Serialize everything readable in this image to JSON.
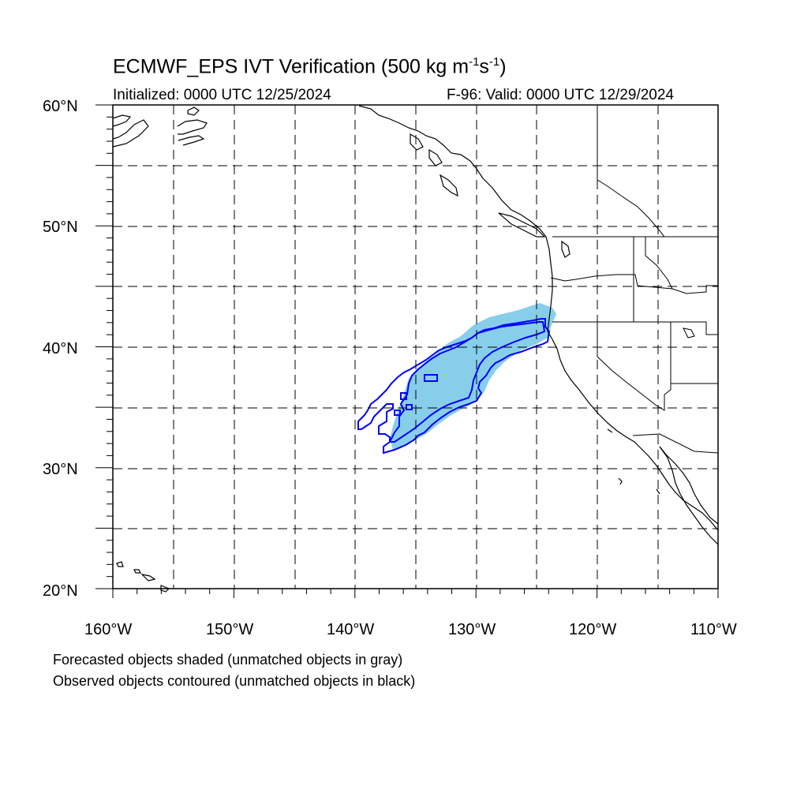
{
  "header": {
    "title_main": "ECMWF_EPS IVT Verification (500 kg m",
    "title_exp1": "-1",
    "title_mid": "s",
    "title_exp2": "-1",
    "title_end": ")",
    "initialized": "Initialized: 0000 UTC 12/25/2024",
    "valid": "F-96: Valid: 0000 UTC 12/29/2024"
  },
  "map": {
    "projection": "cylindrical equidistant",
    "lon_range": [
      -160,
      -110
    ],
    "lat_range": [
      20,
      60
    ],
    "lat_labels": [
      "60°N",
      "50°N",
      "40°N",
      "30°N",
      "20°N"
    ],
    "lon_labels": [
      "160°W",
      "150°W",
      "140°W",
      "130°W",
      "120°W",
      "110°W"
    ],
    "gridlines": "dashed every 5 degrees",
    "forecast_fill_color": "#87CEEB",
    "observed_contour_color": "#0000FF",
    "coastline_color": "#000000"
  },
  "caption": {
    "line1": "Forecasted objects shaded (unmatched objects in gray)",
    "line2": "Observed objects contoured (unmatched objects in black)"
  }
}
